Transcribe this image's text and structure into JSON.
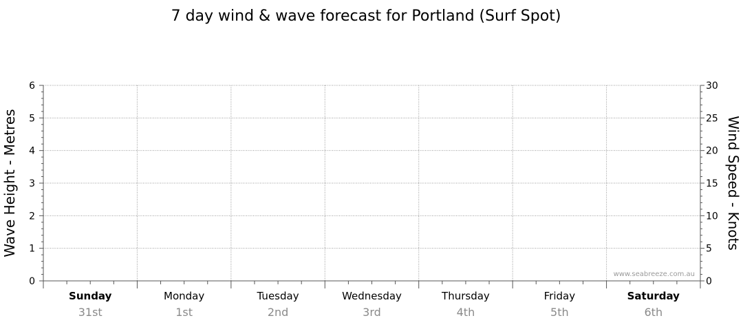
{
  "chart_data": {
    "type": "line",
    "title": "7 day wind & wave forecast for Portland (Surf Spot)",
    "ylabel": "Wave Height - Metres",
    "y2label": "Wind Speed - Knots",
    "ylim": [
      0,
      6
    ],
    "y2lim": [
      0,
      30
    ],
    "yticks": [
      0,
      1,
      2,
      3,
      4,
      5,
      6
    ],
    "y2ticks": [
      0,
      5,
      10,
      15,
      20,
      25,
      30
    ],
    "grid": true,
    "days": [
      {
        "day": "Sunday",
        "date": "31st",
        "bold": true
      },
      {
        "day": "Monday",
        "date": "1st",
        "bold": false
      },
      {
        "day": "Tuesday",
        "date": "2nd",
        "bold": false
      },
      {
        "day": "Wednesday",
        "date": "3rd",
        "bold": false
      },
      {
        "day": "Thursday",
        "date": "4th",
        "bold": false
      },
      {
        "day": "Friday",
        "date": "5th",
        "bold": false
      },
      {
        "day": "Saturday",
        "date": "6th",
        "bold": true
      }
    ],
    "series": [],
    "watermark": "www.seabreeze.com.au"
  }
}
